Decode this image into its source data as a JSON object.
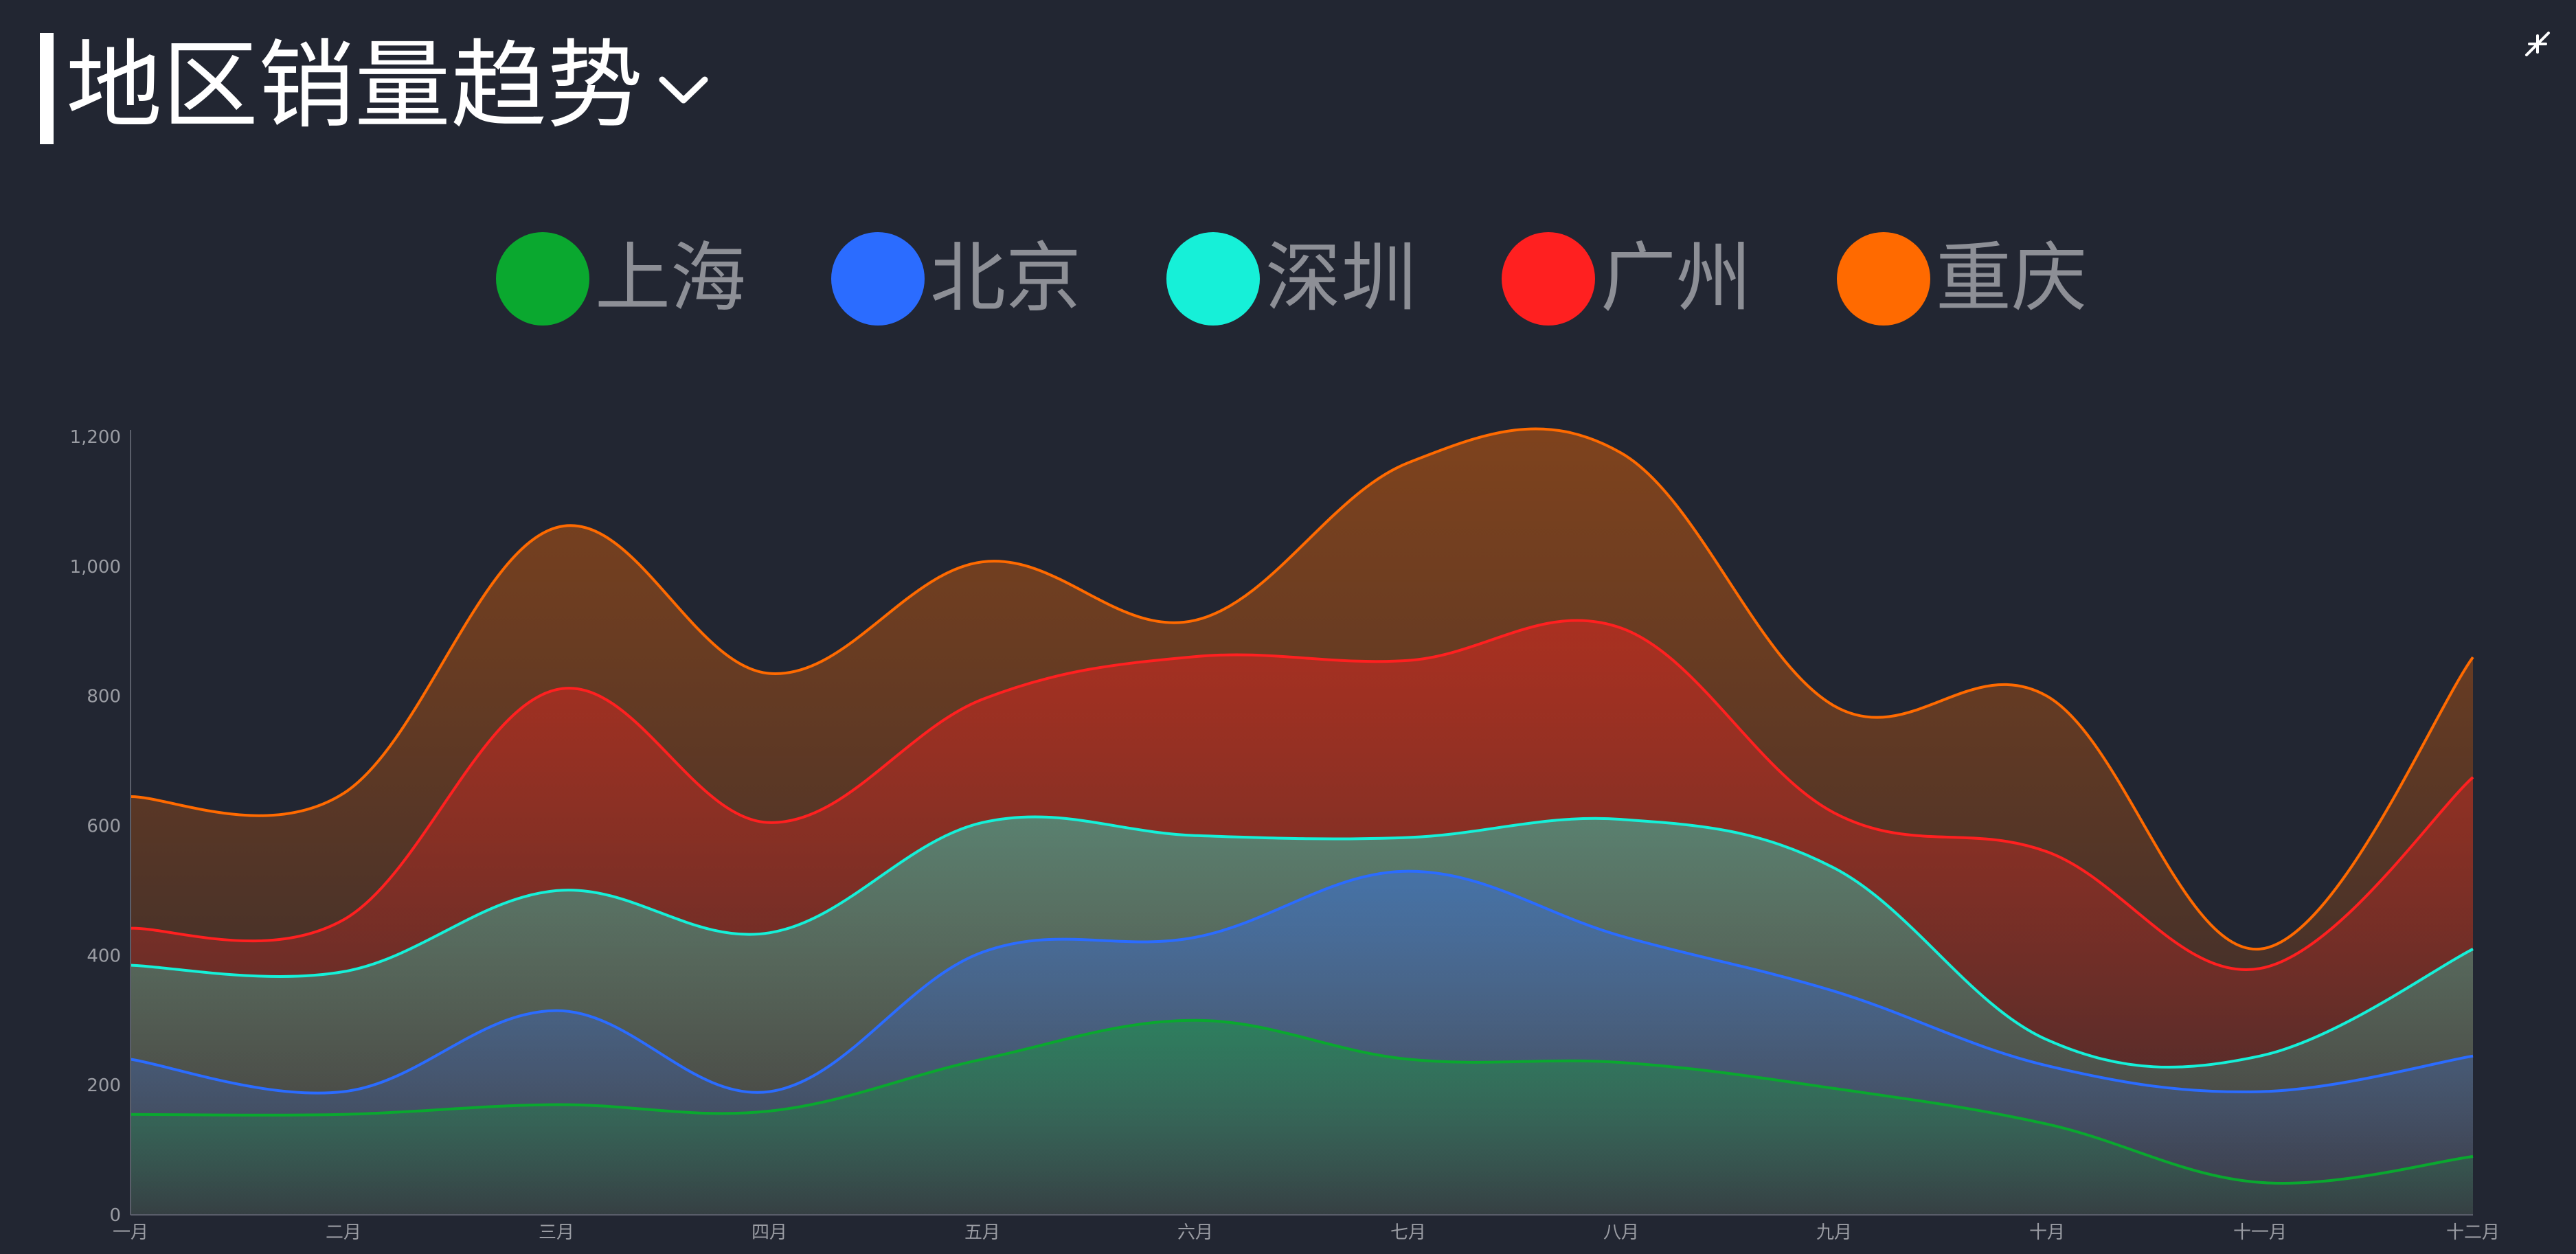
{
  "header": {
    "title": "地区销量趋势"
  },
  "icons": {
    "title_chevron": "chevron-down-icon",
    "collapse": "collapse-icon"
  },
  "legend": {
    "items": [
      {
        "label": "上海",
        "color": "#0aa82f"
      },
      {
        "label": "北京",
        "color": "#2b6cff"
      },
      {
        "label": "深圳",
        "color": "#16f0d8"
      },
      {
        "label": "广州",
        "color": "#ff2020"
      },
      {
        "label": "重庆",
        "color": "#ff6a00"
      }
    ]
  },
  "chart_data": {
    "type": "area",
    "stacked": true,
    "categories": [
      "一月",
      "二月",
      "三月",
      "四月",
      "五月",
      "六月",
      "七月",
      "八月",
      "九月",
      "十月",
      "十一月",
      "十二月"
    ],
    "y_ticks": [
      "0",
      "200",
      "400",
      "600",
      "800",
      "1,000",
      "1,200"
    ],
    "ylim": [
      0,
      1200
    ],
    "grid": false,
    "legend_position": "top-center",
    "series": [
      {
        "name": "上海",
        "color": "#0aa82f",
        "values": [
          155,
          155,
          170,
          160,
          240,
          300,
          240,
          235,
          195,
          140,
          50,
          90
        ]
      },
      {
        "name": "北京",
        "color": "#2b6cff",
        "values": [
          85,
          35,
          145,
          30,
          165,
          128,
          290,
          195,
          150,
          90,
          140,
          155
        ]
      },
      {
        "name": "深圳",
        "color": "#16f0d8",
        "values": [
          145,
          185,
          185,
          245,
          200,
          157,
          52,
          180,
          190,
          40,
          55,
          165
        ]
      },
      {
        "name": "广州",
        "color": "#ff2020",
        "values": [
          57,
          80,
          310,
          170,
          190,
          276,
          273,
          295,
          85,
          290,
          135,
          265
        ]
      },
      {
        "name": "重庆",
        "color": "#ff6a00",
        "values": [
          203,
          195,
          250,
          230,
          212,
          56,
          305,
          270,
          165,
          240,
          30,
          185
        ]
      }
    ]
  }
}
